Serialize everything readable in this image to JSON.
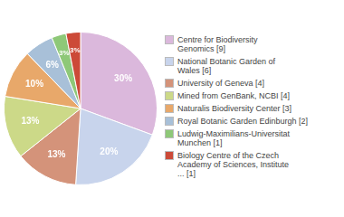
{
  "chart_data": {
    "type": "pie",
    "categories": [
      "Centre for Biodiversity\nGenomics [9]",
      "National Botanic Garden of\nWales [6]",
      "University of Geneva [4]",
      "Mined from GenBank, NCBI [4]",
      "Naturalis Biodiversity Center [3]",
      "Royal Botanic Garden Edinburgh [2]",
      "Ludwig-Maximilians-Universitat\nMunchen [1]",
      "Biology Centre of the Czech\nAcademy of Sciences, Institute\n... [1]"
    ],
    "values": [
      30,
      20,
      13,
      13,
      10,
      6,
      3,
      3
    ],
    "value_labels": [
      "30%",
      "20%",
      "13%",
      "13%",
      "10%",
      "6%",
      "3%",
      "3%"
    ],
    "colors": [
      "#dbb8dc",
      "#c8d4ec",
      "#d4937a",
      "#ccd988",
      "#e8a86a",
      "#a8c0d8",
      "#8ec878",
      "#cc4a38"
    ],
    "legend": "right",
    "data_labels": true
  }
}
